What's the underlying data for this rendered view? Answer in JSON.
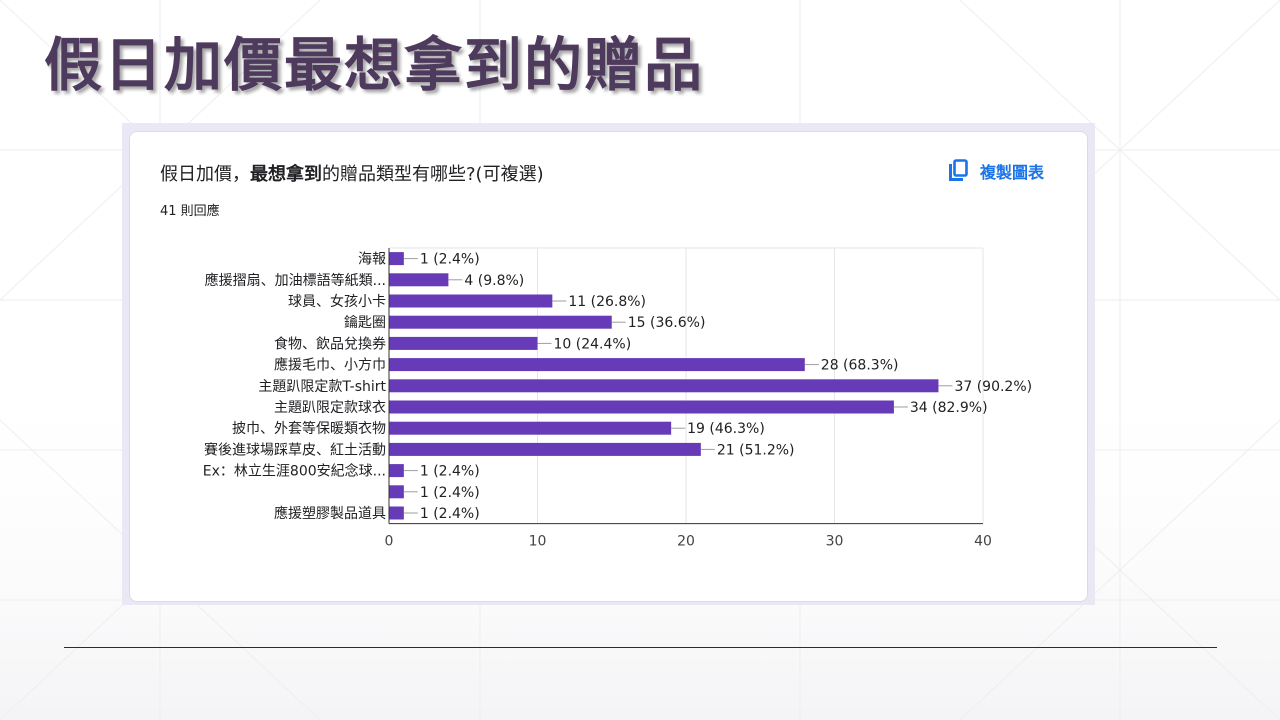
{
  "slide": {
    "title": "假日加價最想拿到的贈品"
  },
  "card": {
    "question_prefix": "假日加價，",
    "question_bold": "最想拿到",
    "question_suffix": "的贈品類型有哪些?(可複選)",
    "responses": "41 則回應",
    "copy_label": "複製圖表"
  },
  "colors": {
    "bar": "#673ab7",
    "accent": "#1a73e8",
    "title": "#4e3a5c",
    "gridline": "#e6e6e6"
  },
  "icons": {
    "copy": "copy-icon"
  },
  "chart_data": {
    "type": "bar",
    "orientation": "horizontal",
    "categories": [
      "海報",
      "應援摺扇、加油標語等紙類...",
      "球員、女孩小卡",
      "鑰匙圈",
      "食物、飲品兌換券",
      "應援毛巾、小方巾",
      "主題趴限定款T-shirt",
      "主題趴限定款球衣",
      "披巾、外套等保暖類衣物",
      "賽後進球場踩草皮、紅土活動",
      "Ex：林立生涯800安紀念球...",
      "",
      "應援塑膠製品道具"
    ],
    "values": [
      1,
      4,
      11,
      15,
      10,
      28,
      37,
      34,
      19,
      21,
      1,
      1,
      1
    ],
    "data_labels": [
      "1 (2.4%)",
      "4 (9.8%)",
      "11 (26.8%)",
      "15 (36.6%)",
      "10 (24.4%)",
      "28 (68.3%)",
      "37 (90.2%)",
      "34 (82.9%)",
      "19 (46.3%)",
      "21 (51.2%)",
      "1 (2.4%)",
      "1 (2.4%)",
      "1 (2.4%)"
    ],
    "xlim": [
      0,
      40
    ],
    "xticks": [
      "0",
      "10",
      "20",
      "30",
      "40"
    ],
    "grid": true,
    "title": "",
    "xlabel": "",
    "ylabel": ""
  }
}
